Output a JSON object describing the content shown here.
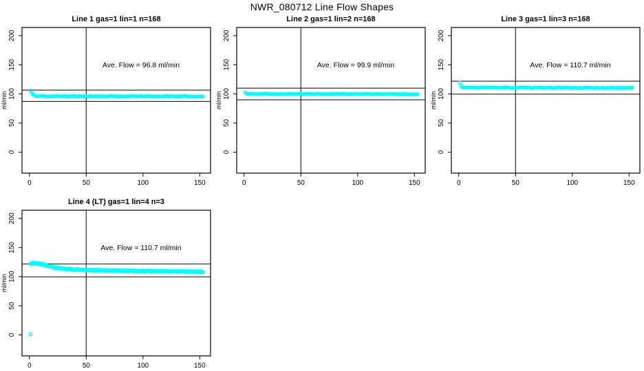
{
  "page_title": "NWR_080712  Line Flow Shapes",
  "colors": {
    "marker": "#00FFFF",
    "axis": "#000000",
    "background": "#FFFFFF",
    "text": "#000000"
  },
  "chart_data": [
    {
      "type": "scatter",
      "title": "Line 1 gas=1 lin=1 n=168",
      "annotation": "Ave. Flow =  96.8  ml/min",
      "ave_flow_ml_min": 96.8,
      "xlabel": "",
      "ylabel": "ml/min",
      "xlim": [
        -6.5,
        159.5
      ],
      "ylim": [
        -36,
        214
      ],
      "xticks": [
        0,
        50,
        100,
        150
      ],
      "yticks": [
        0,
        50,
        100,
        150,
        200
      ],
      "vline_x": 50,
      "hlines": [
        106.5,
        87.1
      ],
      "marker": "open-circle",
      "marker_color": "#00FFFF",
      "series": [
        {
          "name": "flow",
          "x_start": 1,
          "x_end": 153,
          "n_points": 168,
          "passes": 1,
          "noise": 0.9,
          "keypoints": [
            [
              1,
              106
            ],
            [
              2,
              102
            ],
            [
              3,
              99
            ],
            [
              4,
              97.5
            ],
            [
              6,
              96.3
            ],
            [
              20,
              95.9
            ],
            [
              153,
              95.7
            ]
          ]
        }
      ],
      "extra_points": []
    },
    {
      "type": "scatter",
      "title": "Line 2 gas=1 lin=2 n=168",
      "annotation": "Ave. Flow =  99.9  ml/min",
      "ave_flow_ml_min": 99.9,
      "xlabel": "",
      "ylabel": "ml/min",
      "xlim": [
        -6.5,
        159.5
      ],
      "ylim": [
        -36,
        214
      ],
      "xticks": [
        0,
        50,
        100,
        150
      ],
      "yticks": [
        0,
        50,
        100,
        150,
        200
      ],
      "vline_x": 50,
      "hlines": [
        109.9,
        89.9
      ],
      "marker": "open-circle",
      "marker_color": "#00FFFF",
      "series": [
        {
          "name": "flow",
          "x_start": 1,
          "x_end": 153,
          "n_points": 168,
          "passes": 1,
          "noise": 0.7,
          "keypoints": [
            [
              1,
              102.5
            ],
            [
              2,
              101
            ],
            [
              3,
              100.4
            ],
            [
              6,
              100.1
            ],
            [
              80,
              99.9
            ],
            [
              153,
              99.4
            ]
          ]
        }
      ],
      "extra_points": []
    },
    {
      "type": "scatter",
      "title": "Line 3 gas=1 lin=3 n=168",
      "annotation": "Ave. Flow =  110.7  ml/min",
      "ave_flow_ml_min": 110.7,
      "xlabel": "",
      "ylabel": "ml/min",
      "xlim": [
        -6.5,
        159.5
      ],
      "ylim": [
        -36,
        214
      ],
      "xticks": [
        0,
        50,
        100,
        150
      ],
      "yticks": [
        0,
        50,
        100,
        150,
        200
      ],
      "vline_x": 50,
      "hlines": [
        121.8,
        99.6
      ],
      "marker": "open-circle",
      "marker_color": "#00FFFF",
      "series": [
        {
          "name": "flow",
          "x_start": 1,
          "x_end": 153,
          "n_points": 168,
          "passes": 1,
          "noise": 0.8,
          "keypoints": [
            [
              1,
              120
            ],
            [
              2,
              113.5
            ],
            [
              3,
              111.5
            ],
            [
              5,
              110.8
            ],
            [
              60,
              110.5
            ],
            [
              153,
              110.2
            ]
          ]
        }
      ],
      "extra_points": []
    },
    {
      "type": "scatter",
      "title": "Line 4 (LT) gas=1 lin=4 n=3",
      "annotation": "Ave. Flow =  110.7  ml/min",
      "ave_flow_ml_min": 110.7,
      "xlabel": "",
      "ylabel": "ml/min",
      "xlim": [
        -6.5,
        159.5
      ],
      "ylim": [
        -36,
        214
      ],
      "xticks": [
        0,
        50,
        100,
        150
      ],
      "yticks": [
        0,
        50,
        100,
        150,
        200
      ],
      "vline_x": 50,
      "hlines": [
        121.8,
        99.6
      ],
      "marker": "open-circle",
      "marker_color": "#00FFFF",
      "series": [
        {
          "name": "flow",
          "x_start": 1,
          "x_end": 153,
          "n_points": 168,
          "passes": 3,
          "noise": 1.3,
          "keypoints": [
            [
              1,
              121.5
            ],
            [
              2,
              122.5
            ],
            [
              4,
              123.2
            ],
            [
              8,
              122.8
            ],
            [
              12,
              121
            ],
            [
              16,
              118.5
            ],
            [
              20,
              116.5
            ],
            [
              25,
              114.8
            ],
            [
              32,
              113.2
            ],
            [
              40,
              112.2
            ],
            [
              50,
              111.4
            ],
            [
              65,
              110.6
            ],
            [
              85,
              110
            ],
            [
              110,
              109.3
            ],
            [
              135,
              108.7
            ],
            [
              153,
              108.4
            ]
          ]
        }
      ],
      "extra_points": [
        [
          1,
          1
        ]
      ]
    }
  ]
}
